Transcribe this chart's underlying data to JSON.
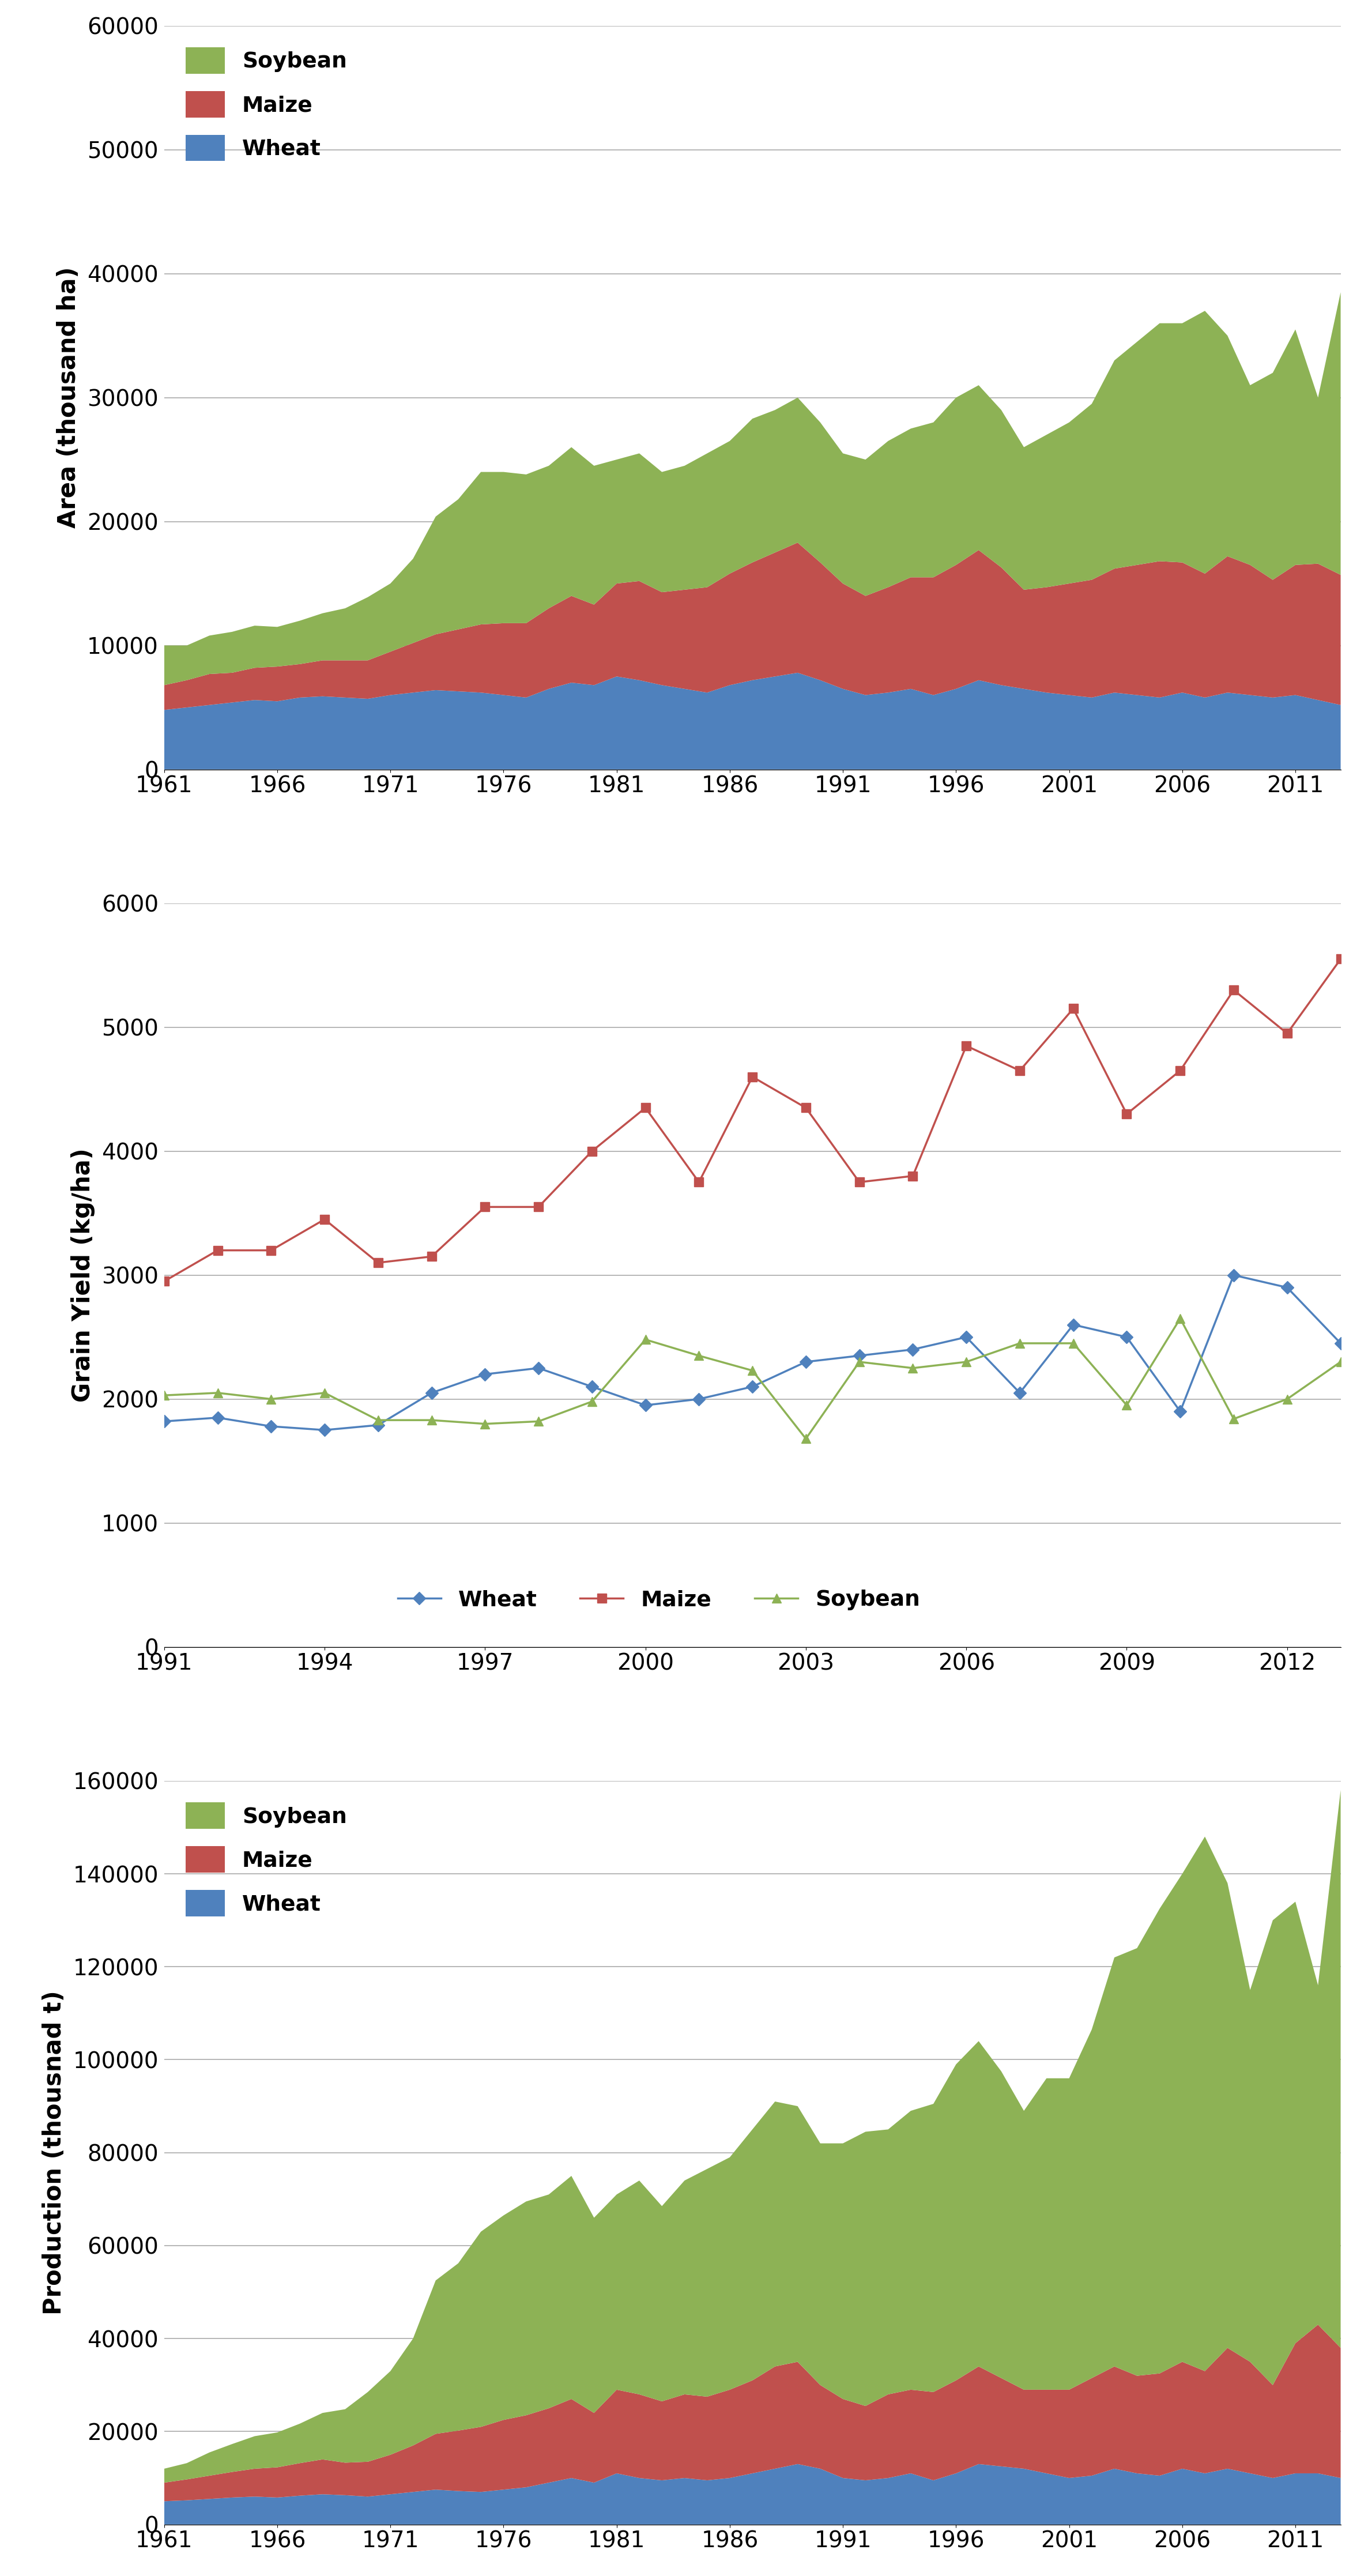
{
  "area_years": [
    1961,
    1962,
    1963,
    1964,
    1965,
    1966,
    1967,
    1968,
    1969,
    1970,
    1971,
    1972,
    1973,
    1974,
    1975,
    1976,
    1977,
    1978,
    1979,
    1980,
    1981,
    1982,
    1983,
    1984,
    1985,
    1986,
    1987,
    1988,
    1989,
    1990,
    1991,
    1992,
    1993,
    1994,
    1995,
    1996,
    1997,
    1998,
    1999,
    2000,
    2001,
    2002,
    2003,
    2004,
    2005,
    2006,
    2007,
    2008,
    2009,
    2010,
    2011,
    2012,
    2013
  ],
  "area_wheat": [
    4800,
    5000,
    5200,
    5400,
    5600,
    5500,
    5800,
    5900,
    5800,
    5700,
    6000,
    6200,
    6400,
    6300,
    6200,
    6000,
    5800,
    6500,
    7000,
    6800,
    7500,
    7200,
    6800,
    6500,
    6200,
    6800,
    7200,
    7500,
    7800,
    7200,
    6500,
    6000,
    6200,
    6500,
    6000,
    6500,
    7200,
    6800,
    6500,
    6200,
    6000,
    5800,
    6200,
    6000,
    5800,
    6200,
    5800,
    6200,
    6000,
    5800,
    6000,
    5600,
    5200
  ],
  "area_maize": [
    2000,
    2200,
    2500,
    2400,
    2600,
    2800,
    2700,
    2900,
    3000,
    3100,
    3500,
    4000,
    4500,
    5000,
    5500,
    5800,
    6000,
    6500,
    7000,
    6500,
    7500,
    8000,
    7500,
    8000,
    8500,
    9000,
    9500,
    10000,
    10500,
    9500,
    8500,
    8000,
    8500,
    9000,
    9500,
    10000,
    10500,
    9500,
    8000,
    8500,
    9000,
    9500,
    10000,
    10500,
    11000,
    10500,
    10000,
    11000,
    10500,
    9500,
    10500,
    11000,
    10500
  ],
  "area_soybean": [
    3200,
    2800,
    3100,
    3300,
    3400,
    3200,
    3500,
    3800,
    4200,
    5100,
    5500,
    6800,
    9500,
    10500,
    12300,
    12200,
    12000,
    11500,
    12000,
    11200,
    10000,
    10300,
    9700,
    10000,
    10800,
    10700,
    11600,
    11500,
    11700,
    11300,
    10500,
    11000,
    11800,
    12000,
    12500,
    13500,
    13300,
    12700,
    11500,
    12300,
    13000,
    14200,
    16800,
    18000,
    19200,
    19300,
    21200,
    17800,
    14500,
    16700,
    19000,
    13400,
    22800
  ],
  "yield_years": [
    1991,
    1992,
    1993,
    1994,
    1995,
    1996,
    1997,
    1998,
    1999,
    2000,
    2001,
    2002,
    2003,
    2004,
    2005,
    2006,
    2007,
    2008,
    2009,
    2010,
    2011,
    2012,
    2013
  ],
  "yield_wheat": [
    1820,
    1850,
    1780,
    1750,
    1790,
    2050,
    2200,
    2250,
    2100,
    1950,
    2000,
    2100,
    2300,
    2350,
    2400,
    2500,
    2050,
    2600,
    2500,
    1900,
    3000,
    2900,
    2450
  ],
  "yield_maize": [
    2950,
    3200,
    3200,
    3450,
    3100,
    3150,
    3550,
    3550,
    4000,
    4350,
    3750,
    4600,
    4350,
    3750,
    3800,
    4850,
    4650,
    5150,
    4300,
    4650,
    5300,
    4950,
    5550
  ],
  "yield_soybean": [
    2030,
    2050,
    2000,
    2050,
    1830,
    1830,
    1800,
    1820,
    1980,
    2480,
    2350,
    2230,
    1680,
    2300,
    2250,
    2300,
    2450,
    2450,
    1950,
    2650,
    1840,
    2000,
    2300
  ],
  "prod_years": [
    1961,
    1962,
    1963,
    1964,
    1965,
    1966,
    1967,
    1968,
    1969,
    1970,
    1971,
    1972,
    1973,
    1974,
    1975,
    1976,
    1977,
    1978,
    1979,
    1980,
    1981,
    1982,
    1983,
    1984,
    1985,
    1986,
    1987,
    1988,
    1989,
    1990,
    1991,
    1992,
    1993,
    1994,
    1995,
    1996,
    1997,
    1998,
    1999,
    2000,
    2001,
    2002,
    2003,
    2004,
    2005,
    2006,
    2007,
    2008,
    2009,
    2010,
    2011,
    2012,
    2013
  ],
  "prod_wheat": [
    5000,
    5200,
    5500,
    5800,
    6000,
    5800,
    6200,
    6500,
    6300,
    6000,
    6500,
    7000,
    7500,
    7200,
    7000,
    7500,
    8000,
    9000,
    10000,
    9000,
    11000,
    10000,
    9500,
    10000,
    9500,
    10000,
    11000,
    12000,
    13000,
    12000,
    10000,
    9500,
    10000,
    11000,
    9500,
    11000,
    13000,
    12500,
    12000,
    11000,
    10000,
    10500,
    12000,
    11000,
    10500,
    12000,
    11000,
    12000,
    11000,
    10000,
    11000,
    11000,
    10000
  ],
  "prod_maize": [
    4000,
    4500,
    5000,
    5500,
    6000,
    6500,
    7000,
    7500,
    7000,
    7500,
    8500,
    10000,
    12000,
    13000,
    14000,
    15000,
    15500,
    16000,
    17000,
    15000,
    18000,
    18000,
    17000,
    18000,
    18000,
    19000,
    20000,
    22000,
    22000,
    18000,
    17000,
    16000,
    18000,
    18000,
    19000,
    20000,
    21000,
    19000,
    17000,
    18000,
    19000,
    21000,
    22000,
    21000,
    22000,
    23000,
    22000,
    26000,
    24000,
    20000,
    28000,
    32000,
    28000
  ],
  "prod_soybean": [
    3000,
    3500,
    5000,
    6000,
    7000,
    7500,
    8500,
    10000,
    11500,
    15000,
    18000,
    23000,
    33000,
    36000,
    42000,
    44000,
    46000,
    46000,
    48000,
    42000,
    42000,
    46000,
    42000,
    46000,
    49000,
    50000,
    54000,
    57000,
    55000,
    52000,
    55000,
    59000,
    57000,
    60000,
    62000,
    68000,
    70000,
    66000,
    60000,
    67000,
    67000,
    75000,
    88000,
    92000,
    100000,
    105000,
    115000,
    100000,
    80000,
    100000,
    95000,
    73000,
    120000
  ],
  "color_soybean": "#8DB255",
  "color_maize": "#C0504D",
  "color_wheat": "#4F81BD",
  "color_maize_line": "#C0504D",
  "color_wheat_line": "#4F81BD",
  "color_soybean_line": "#8DB255",
  "bg_color": "#FFFFFF",
  "grid_color": "#AAAAAA"
}
